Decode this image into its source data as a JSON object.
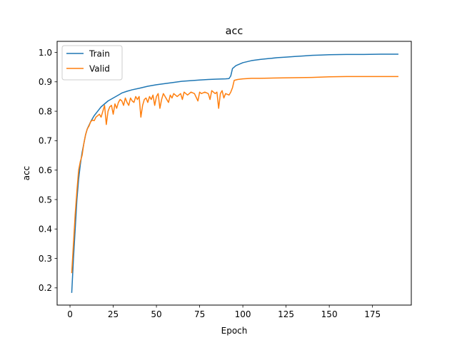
{
  "chart_data": {
    "type": "line",
    "title": "acc",
    "xlabel": "Epoch",
    "ylabel": "acc",
    "xlim": [
      -7.45,
      197.45
    ],
    "ylim": [
      0.1415,
      1.0375
    ],
    "x_ticks": [
      0,
      25,
      50,
      75,
      100,
      125,
      150,
      175
    ],
    "x_tick_labels": [
      "0",
      "25",
      "50",
      "75",
      "100",
      "125",
      "150",
      "175"
    ],
    "y_ticks": [
      0.2,
      0.3,
      0.4,
      0.5,
      0.6,
      0.7,
      0.8,
      0.9,
      1.0
    ],
    "y_tick_labels": [
      "0.2",
      "0.3",
      "0.4",
      "0.5",
      "0.6",
      "0.7",
      "0.8",
      "0.9",
      "1.0"
    ],
    "legend_position": "top-left",
    "grid": false,
    "series": [
      {
        "name": "Train",
        "color": "#1f77b4",
        "points": [
          [
            1,
            0.183
          ],
          [
            2,
            0.3
          ],
          [
            3,
            0.4
          ],
          [
            4,
            0.5
          ],
          [
            5,
            0.57
          ],
          [
            6,
            0.62
          ],
          [
            7,
            0.66
          ],
          [
            8,
            0.69
          ],
          [
            9,
            0.72
          ],
          [
            10,
            0.74
          ],
          [
            12,
            0.765
          ],
          [
            14,
            0.785
          ],
          [
            16,
            0.8
          ],
          [
            18,
            0.815
          ],
          [
            20,
            0.825
          ],
          [
            22,
            0.835
          ],
          [
            25,
            0.845
          ],
          [
            28,
            0.855
          ],
          [
            30,
            0.862
          ],
          [
            33,
            0.868
          ],
          [
            36,
            0.873
          ],
          [
            40,
            0.878
          ],
          [
            45,
            0.885
          ],
          [
            50,
            0.89
          ],
          [
            55,
            0.894
          ],
          [
            60,
            0.898
          ],
          [
            65,
            0.902
          ],
          [
            70,
            0.904
          ],
          [
            75,
            0.906
          ],
          [
            80,
            0.908
          ],
          [
            85,
            0.909
          ],
          [
            90,
            0.91
          ],
          [
            92,
            0.911
          ],
          [
            93,
            0.92
          ],
          [
            94,
            0.945
          ],
          [
            96,
            0.955
          ],
          [
            100,
            0.965
          ],
          [
            105,
            0.972
          ],
          [
            110,
            0.976
          ],
          [
            115,
            0.979
          ],
          [
            120,
            0.982
          ],
          [
            125,
            0.984
          ],
          [
            130,
            0.986
          ],
          [
            135,
            0.988
          ],
          [
            140,
            0.99
          ],
          [
            145,
            0.991
          ],
          [
            150,
            0.992
          ],
          [
            160,
            0.993
          ],
          [
            170,
            0.993
          ],
          [
            180,
            0.994
          ],
          [
            190,
            0.994
          ]
        ]
      },
      {
        "name": "Valid",
        "color": "#ff7f0e",
        "points": [
          [
            1,
            0.25
          ],
          [
            2,
            0.35
          ],
          [
            3,
            0.45
          ],
          [
            4,
            0.53
          ],
          [
            5,
            0.6
          ],
          [
            6,
            0.63
          ],
          [
            7,
            0.65
          ],
          [
            8,
            0.69
          ],
          [
            9,
            0.72
          ],
          [
            10,
            0.74
          ],
          [
            11,
            0.75
          ],
          [
            12,
            0.765
          ],
          [
            13,
            0.77
          ],
          [
            14,
            0.768
          ],
          [
            15,
            0.78
          ],
          [
            16,
            0.785
          ],
          [
            17,
            0.79
          ],
          [
            18,
            0.78
          ],
          [
            19,
            0.8
          ],
          [
            20,
            0.82
          ],
          [
            21,
            0.755
          ],
          [
            22,
            0.8
          ],
          [
            23,
            0.815
          ],
          [
            24,
            0.82
          ],
          [
            25,
            0.79
          ],
          [
            26,
            0.825
          ],
          [
            27,
            0.81
          ],
          [
            28,
            0.83
          ],
          [
            29,
            0.84
          ],
          [
            30,
            0.835
          ],
          [
            31,
            0.82
          ],
          [
            32,
            0.845
          ],
          [
            33,
            0.83
          ],
          [
            34,
            0.82
          ],
          [
            35,
            0.845
          ],
          [
            36,
            0.835
          ],
          [
            37,
            0.83
          ],
          [
            38,
            0.85
          ],
          [
            39,
            0.84
          ],
          [
            40,
            0.85
          ],
          [
            41,
            0.78
          ],
          [
            42,
            0.82
          ],
          [
            43,
            0.84
          ],
          [
            44,
            0.845
          ],
          [
            45,
            0.83
          ],
          [
            46,
            0.85
          ],
          [
            47,
            0.84
          ],
          [
            48,
            0.855
          ],
          [
            49,
            0.82
          ],
          [
            50,
            0.85
          ],
          [
            51,
            0.86
          ],
          [
            52,
            0.81
          ],
          [
            53,
            0.84
          ],
          [
            54,
            0.86
          ],
          [
            55,
            0.85
          ],
          [
            56,
            0.84
          ],
          [
            57,
            0.83
          ],
          [
            58,
            0.855
          ],
          [
            59,
            0.845
          ],
          [
            60,
            0.86
          ],
          [
            62,
            0.85
          ],
          [
            64,
            0.86
          ],
          [
            65,
            0.84
          ],
          [
            66,
            0.865
          ],
          [
            68,
            0.855
          ],
          [
            70,
            0.865
          ],
          [
            72,
            0.86
          ],
          [
            74,
            0.835
          ],
          [
            75,
            0.865
          ],
          [
            76,
            0.86
          ],
          [
            78,
            0.865
          ],
          [
            80,
            0.86
          ],
          [
            81,
            0.84
          ],
          [
            82,
            0.87
          ],
          [
            84,
            0.86
          ],
          [
            85,
            0.865
          ],
          [
            86,
            0.81
          ],
          [
            87,
            0.86
          ],
          [
            88,
            0.87
          ],
          [
            89,
            0.845
          ],
          [
            90,
            0.86
          ],
          [
            92,
            0.855
          ],
          [
            93,
            0.865
          ],
          [
            94,
            0.88
          ],
          [
            95,
            0.905
          ],
          [
            97,
            0.908
          ],
          [
            100,
            0.91
          ],
          [
            105,
            0.912
          ],
          [
            110,
            0.912
          ],
          [
            120,
            0.913
          ],
          [
            130,
            0.914
          ],
          [
            140,
            0.915
          ],
          [
            150,
            0.917
          ],
          [
            160,
            0.918
          ],
          [
            170,
            0.918
          ],
          [
            180,
            0.918
          ],
          [
            190,
            0.918
          ]
        ]
      }
    ]
  }
}
